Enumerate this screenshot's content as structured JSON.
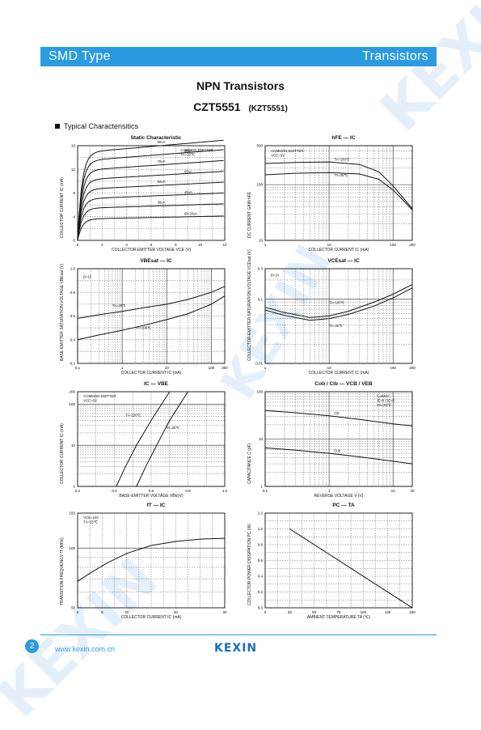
{
  "header": {
    "left": "SMD Type",
    "right": "Transistors"
  },
  "watermark": "KEXIN",
  "title": "NPN  Transistors",
  "part": "CZT5551",
  "part_alt": "(KZT5551)",
  "section": "Typical  Characterisitics",
  "footer": {
    "page": "2",
    "url": "www.kexin.com.cn",
    "logo": "KEXIN"
  },
  "chart_data": [
    {
      "type": "line",
      "title": "Static Characteristic",
      "xlabel": "COLLECTOR-EMITTER VOLTAGE   VCE   (V)",
      "ylabel": "COLLECTOR CURRENT   IC   (mA)",
      "xlim": [
        0,
        12
      ],
      "ylim": [
        0,
        16
      ],
      "xticks": [
        "0",
        "2",
        "4",
        "6",
        "8",
        "10",
        "12"
      ],
      "yticks": [
        "0",
        "4",
        "8",
        "12",
        "16"
      ],
      "annotations": [
        "COMMON EMITTER",
        "TA=25℃"
      ],
      "series": [
        {
          "name": "90uA",
          "sat": 14.8
        },
        {
          "name": "80uA",
          "sat": 13.4
        },
        {
          "name": "70uA",
          "sat": 11.8
        },
        {
          "name": "60uA",
          "sat": 10.2
        },
        {
          "name": "50uA",
          "sat": 8.6
        },
        {
          "name": "40uA",
          "sat": 7.0
        },
        {
          "name": "30uA",
          "sat": 5.4
        },
        {
          "name": "IB=20uA",
          "sat": 3.6
        }
      ]
    },
    {
      "type": "line",
      "title": "hFE — IC",
      "xlabel": "COLLECTOR CURRENT   IC   (mA)",
      "ylabel": "DC CURRENT GAIN   hFE",
      "xscale": "log",
      "yscale": "log",
      "xlim": [
        1,
        200
      ],
      "ylim": [
        10,
        500
      ],
      "xticks": [
        "1",
        "10",
        "100",
        "200"
      ],
      "yticks": [
        "10",
        "100",
        "500"
      ],
      "annotations": [
        "COMMON EMITTER",
        "VCE=5V"
      ],
      "series": [
        {
          "name": "TA=100℃",
          "x": [
            1,
            3,
            10,
            30,
            60,
            100,
            150,
            200
          ],
          "y": [
            240,
            250,
            255,
            230,
            170,
            95,
            55,
            37
          ]
        },
        {
          "name": "TA=25℃",
          "x": [
            1,
            3,
            10,
            30,
            60,
            100,
            150,
            200
          ],
          "y": [
            150,
            160,
            165,
            155,
            125,
            80,
            50,
            35
          ]
        }
      ]
    },
    {
      "type": "line",
      "title": "VBEsat — IC",
      "xlabel": "COLLECTOR CURRENT   IC   (mA)",
      "ylabel": "BASE-EMITTER SATURATION VOLTAGE   VBEsat   (V)",
      "xscale": "log",
      "xlim": [
        0.1,
        200
      ],
      "ylim": [
        0.2,
        1.0
      ],
      "xticks": [
        "0.1",
        "1",
        "10",
        "100",
        "200"
      ],
      "yticks": [
        "0.2",
        "0.4",
        "0.6",
        "0.8",
        "1.0"
      ],
      "annotations": [
        "β=10"
      ],
      "series": [
        {
          "name": "TA=25℃",
          "x": [
            0.1,
            0.3,
            1,
            3,
            10,
            30,
            100,
            200
          ],
          "y": [
            0.58,
            0.61,
            0.64,
            0.67,
            0.7,
            0.74,
            0.8,
            0.85
          ]
        },
        {
          "name": "TA=100℃",
          "x": [
            0.1,
            0.3,
            1,
            3,
            10,
            30,
            100,
            200
          ],
          "y": [
            0.4,
            0.44,
            0.48,
            0.52,
            0.57,
            0.62,
            0.7,
            0.77
          ]
        }
      ]
    },
    {
      "type": "line",
      "title": "VCEsat — IC",
      "xlabel": "COLLECTOR CURRENT   IC   (mA)",
      "ylabel": "COLLECTOR-EMITTER SATURATION VOLTAGE   VCEsat   (V)",
      "xscale": "log",
      "yscale": "log",
      "xlim": [
        1,
        200
      ],
      "ylim": [
        0.01,
        0.3
      ],
      "xticks": [
        "1",
        "10",
        "100",
        "200"
      ],
      "yticks": [
        "0.01",
        "0.1",
        "0.3"
      ],
      "annotations": [
        "β=10"
      ],
      "series": [
        {
          "name": "TA=100℃",
          "x": [
            1,
            2,
            5,
            10,
            20,
            50,
            100,
            200
          ],
          "y": [
            0.075,
            0.062,
            0.052,
            0.055,
            0.065,
            0.09,
            0.12,
            0.17
          ]
        },
        {
          "name": "TA=25℃",
          "x": [
            1,
            2,
            5,
            10,
            20,
            50,
            100,
            200
          ],
          "y": [
            0.068,
            0.056,
            0.047,
            0.05,
            0.058,
            0.078,
            0.105,
            0.15
          ]
        }
      ]
    },
    {
      "type": "line",
      "title": "IC — VBE",
      "xlabel": "BASE-EMITTER VOLTAGE   VBE(V)",
      "ylabel": "COLLECTOR CURRENT   IC   (mA)",
      "yscale": "log",
      "xlim": [
        0.2,
        1.0
      ],
      "ylim": [
        1,
        200
      ],
      "xticks": [
        "0.2",
        "0.4",
        "0.6",
        "0.8",
        "1.0"
      ],
      "yticks": [
        "1",
        "10",
        "100",
        "200"
      ],
      "annotations": [
        "COMMON EMITTER",
        "VCE=5V"
      ],
      "series": [
        {
          "name": "TA=100℃",
          "x": [
            0.41,
            0.46,
            0.52,
            0.6,
            0.7
          ],
          "y": [
            1,
            3,
            10,
            40,
            200
          ]
        },
        {
          "name": "TA=25℃",
          "x": [
            0.52,
            0.57,
            0.63,
            0.7,
            0.8
          ],
          "y": [
            1,
            3,
            10,
            40,
            200
          ]
        }
      ]
    },
    {
      "type": "line",
      "title": "Cob / Cib — VCB / VEB",
      "xlabel": "REVERSE  VOLTAGE   V   (V)",
      "ylabel": "CAPACITANCE   C   (pF)",
      "xscale": "log",
      "yscale": "log",
      "xlim": [
        0.1,
        20
      ],
      "ylim": [
        1,
        100
      ],
      "xticks": [
        "0.1",
        "1",
        "10",
        "20"
      ],
      "yticks": [
        "1",
        "10",
        "100"
      ],
      "annotations": [
        "f=1MHz",
        "IE=0 / IC=0",
        "TA=25℃"
      ],
      "series": [
        {
          "name": "Cib",
          "x": [
            0.1,
            0.3,
            1,
            3,
            10,
            20
          ],
          "y": [
            40,
            36,
            31,
            26,
            21,
            19
          ]
        },
        {
          "name": "Cob",
          "x": [
            0.1,
            0.3,
            1,
            3,
            10,
            20
          ],
          "y": [
            6.5,
            5.8,
            5.0,
            4.2,
            3.4,
            3.0
          ]
        }
      ]
    },
    {
      "type": "line",
      "title": "fT — IC",
      "xlabel": "COLLECTOR CURRENT   IC   (mA)",
      "ylabel": "TRANSITION FREQUENCY   fT   (MHz)",
      "yscale": "log",
      "xlim": [
        0,
        30
      ],
      "ylim": [
        50,
        150
      ],
      "xticks": [
        "0",
        "5",
        "10",
        "20",
        "30"
      ],
      "yticks": [
        "50",
        "100",
        "150"
      ],
      "annotations": [
        "VCE=10V",
        "TA=25℃"
      ],
      "series": [
        {
          "name": "fT",
          "x": [
            0,
            3,
            6,
            10,
            15,
            20,
            25,
            30
          ],
          "y": [
            68,
            76,
            84,
            94,
            103,
            108,
            111,
            112
          ]
        }
      ]
    },
    {
      "type": "line",
      "title": "PC — TA",
      "xlabel": "AMBIENT TEMPERATURE   TA   (℃)",
      "ylabel": "COLLECTOR POWER DISSIPATION   PC   (W)",
      "xlim": [
        0,
        150
      ],
      "ylim": [
        0,
        1.2
      ],
      "xticks": [
        "0",
        "25",
        "50",
        "75",
        "100",
        "125",
        "150"
      ],
      "yticks": [
        "0.0",
        "0.2",
        "0.4",
        "0.6",
        "0.8",
        "1.0",
        "1.2"
      ],
      "series": [
        {
          "name": "PC",
          "x": [
            25,
            150
          ],
          "y": [
            1.0,
            0.0
          ]
        }
      ]
    }
  ]
}
